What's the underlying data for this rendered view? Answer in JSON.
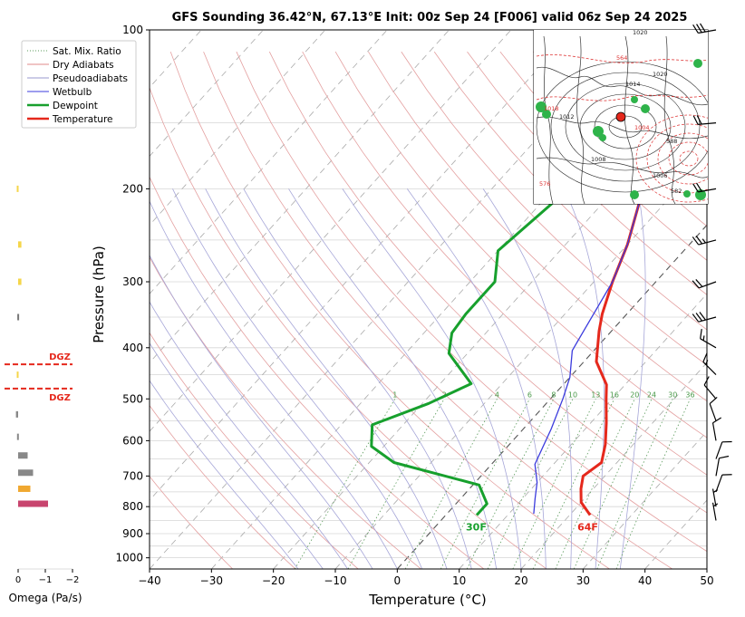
{
  "chart_data": {
    "type": "skew-t",
    "title": "GFS Sounding 36.42°N, 67.13°E Init: 00z Sep 24 [F006] valid 06z Sep 24 2025",
    "xlabel": "Temperature (°C)",
    "ylabel": "Pressure (hPa)",
    "xlim": [
      -40,
      50
    ],
    "ylim": [
      1050,
      100
    ],
    "x_ticks": [
      -40,
      -30,
      -20,
      -10,
      0,
      10,
      20,
      30,
      40,
      50
    ],
    "y_ticks": [
      100,
      200,
      300,
      400,
      500,
      600,
      700,
      800,
      900,
      1000
    ],
    "legend_position": "top-left",
    "legend": [
      {
        "label": "Sat. Mix. Ratio",
        "color": "#5a9a5a",
        "style": "dotted"
      },
      {
        "label": "Dry Adiabats",
        "color": "#e08a8a",
        "style": "solid"
      },
      {
        "label": "Pseudoadiabats",
        "color": "#9a9acf",
        "style": "solid"
      },
      {
        "label": "Wetbulb",
        "color": "#3b3bdd",
        "style": "solid"
      },
      {
        "label": "Dewpoint",
        "color": "#17a02d",
        "style": "solid"
      },
      {
        "label": "Temperature",
        "color": "#e5281c",
        "style": "solid"
      }
    ],
    "mixing_ratio_labels": [
      "1",
      "2",
      "4",
      "6",
      "8",
      "10",
      "13",
      "16",
      "20",
      "24",
      "30",
      "36"
    ],
    "series": [
      {
        "name": "Temperature",
        "color": "#e5281c",
        "points": [
          [
            23.3,
            830
          ],
          [
            20,
            785
          ],
          [
            18,
            740
          ],
          [
            16.5,
            700
          ],
          [
            17.5,
            660
          ],
          [
            15.5,
            610
          ],
          [
            12.5,
            555
          ],
          [
            9,
            500
          ],
          [
            7,
            470
          ],
          [
            2,
            425
          ],
          [
            -2,
            372
          ],
          [
            -4,
            345
          ],
          [
            -7,
            300
          ],
          [
            -10,
            255
          ],
          [
            -15,
            205
          ],
          [
            -20,
            165
          ],
          [
            -20,
            145
          ],
          [
            -17,
            130
          ],
          [
            -14,
            112
          ],
          [
            -13,
            100
          ]
        ]
      },
      {
        "name": "Dewpoint",
        "color": "#17a02d",
        "points": [
          [
            5,
            830
          ],
          [
            5,
            790
          ],
          [
            1,
            728
          ],
          [
            -16,
            660
          ],
          [
            -22,
            615
          ],
          [
            -25,
            560
          ],
          [
            -19,
            510
          ],
          [
            -15,
            468
          ],
          [
            -23,
            410
          ],
          [
            -25.5,
            375
          ],
          [
            -26,
            345
          ],
          [
            -26,
            300
          ],
          [
            -30,
            262
          ],
          [
            -28,
            210
          ],
          [
            -26,
            160
          ],
          [
            -25,
            140
          ],
          [
            -16,
            105
          ],
          [
            -14.5,
            100
          ]
        ]
      },
      {
        "name": "Wetbulb",
        "color": "#3b3bdd",
        "points": [
          [
            14,
            825
          ],
          [
            12,
            772
          ],
          [
            10,
            720
          ],
          [
            7,
            665
          ],
          [
            4.5,
            570
          ],
          [
            2,
            500
          ],
          [
            0,
            455
          ],
          [
            -3.5,
            405
          ],
          [
            -4.5,
            372
          ],
          [
            -7,
            300
          ],
          [
            -10,
            255
          ],
          [
            -15,
            205
          ],
          [
            -20,
            165
          ],
          [
            -20,
            145
          ]
        ]
      }
    ],
    "surface_labels": {
      "temperature": "64F",
      "dewpoint": "30F"
    },
    "dgz_labels": [
      "DGZ",
      "DGZ"
    ],
    "omega": {
      "label": "Omega (Pa/s)",
      "ticks": [
        "0",
        "−1",
        "−2"
      ],
      "bars": [
        {
          "pressure": 200,
          "value": 0.05,
          "color": "#f5d64a"
        },
        {
          "pressure": 255,
          "value": 0.12,
          "color": "#f5d64a"
        },
        {
          "pressure": 300,
          "value": 0.12,
          "color": "#f5d64a"
        },
        {
          "pressure": 350,
          "value": 0.03,
          "color": "#777777"
        },
        {
          "pressure": 450,
          "value": 0.05,
          "color": "#f5d64a"
        },
        {
          "pressure": 535,
          "value": 0.08,
          "color": "#888888"
        },
        {
          "pressure": 590,
          "value": 0.04,
          "color": "#888888"
        },
        {
          "pressure": 640,
          "value": 0.35,
          "color": "#888888"
        },
        {
          "pressure": 690,
          "value": 0.55,
          "color": "#888888"
        },
        {
          "pressure": 740,
          "value": 0.45,
          "color": "#f0a830"
        },
        {
          "pressure": 790,
          "value": 1.1,
          "color": "#c8446e"
        }
      ]
    },
    "wind_barbs": [
      {
        "pressure": 100,
        "dir": 260,
        "kt": 30
      },
      {
        "pressure": 150,
        "dir": 265,
        "kt": 20
      },
      {
        "pressure": 200,
        "dir": 260,
        "kt": 20
      },
      {
        "pressure": 250,
        "dir": 255,
        "kt": 25
      },
      {
        "pressure": 300,
        "dir": 250,
        "kt": 20
      },
      {
        "pressure": 350,
        "dir": 255,
        "kt": 30
      },
      {
        "pressure": 400,
        "dir": 300,
        "kt": 15
      },
      {
        "pressure": 450,
        "dir": 315,
        "kt": 15
      },
      {
        "pressure": 500,
        "dir": 320,
        "kt": 10
      },
      {
        "pressure": 550,
        "dir": 340,
        "kt": 10
      },
      {
        "pressure": 600,
        "dir": 350,
        "kt": 10
      },
      {
        "pressure": 650,
        "dir": 20,
        "kt": 10
      },
      {
        "pressure": 700,
        "dir": 10,
        "kt": 10
      },
      {
        "pressure": 750,
        "dir": 20,
        "kt": 10
      },
      {
        "pressure": 800,
        "dir": 350,
        "kt": 5
      },
      {
        "pressure": 850,
        "dir": 350,
        "kt": 5
      }
    ],
    "inset_map": {
      "location_marker": [
        67.13,
        36.42
      ],
      "contour_labels": [
        "1020",
        "1018",
        "1012",
        "1008",
        "1004",
        "1006",
        "1020",
        "564",
        "588",
        "582",
        "576",
        "1014"
      ]
    }
  }
}
